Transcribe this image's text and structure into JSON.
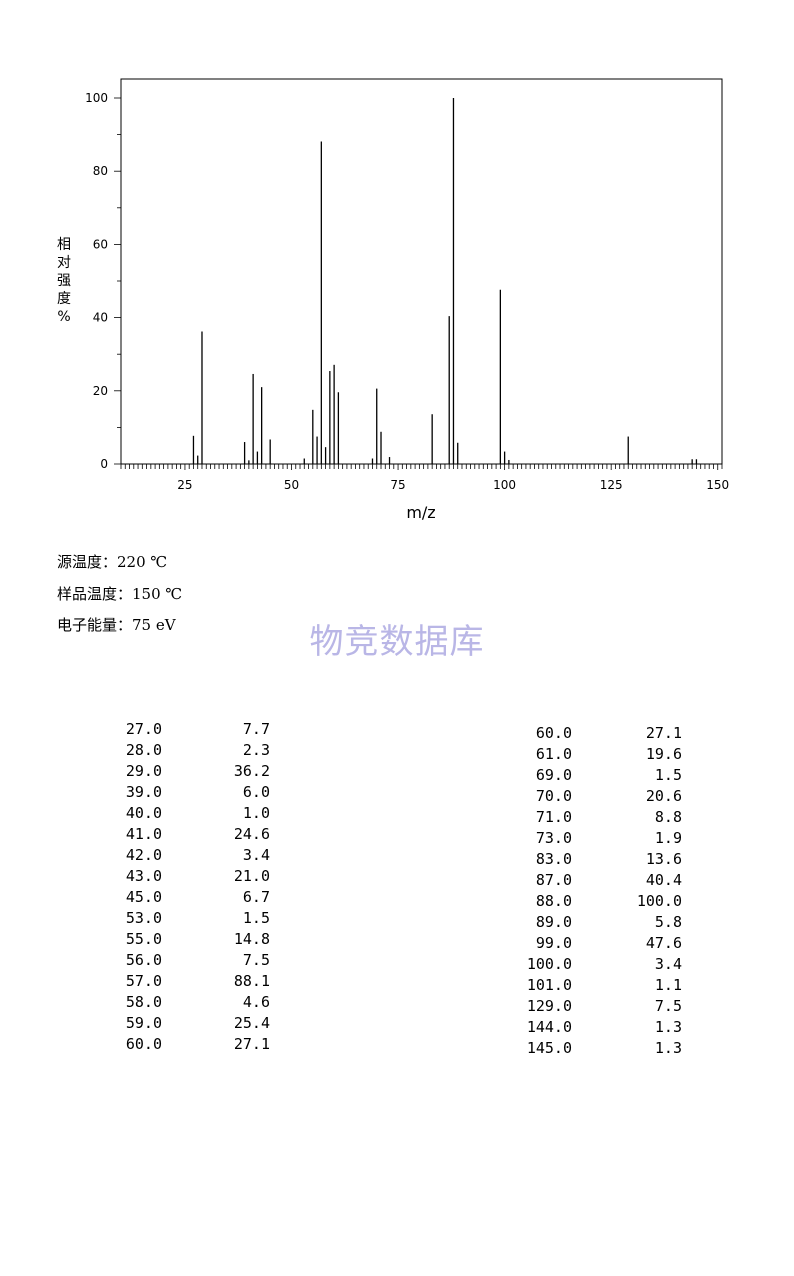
{
  "chart_data": {
    "type": "bar",
    "xlabel": "m/z",
    "ylabel": "相对强度%",
    "xlim": [
      10,
      151
    ],
    "ylim": [
      0,
      100
    ],
    "xticks": [
      25,
      50,
      75,
      100,
      125,
      150
    ],
    "yticks": [
      0,
      20,
      40,
      60,
      80,
      100
    ],
    "grid": false,
    "peaks": [
      {
        "mz": 27.0,
        "intensity": 7.7
      },
      {
        "mz": 28.0,
        "intensity": 2.3
      },
      {
        "mz": 29.0,
        "intensity": 36.2
      },
      {
        "mz": 39.0,
        "intensity": 6.0
      },
      {
        "mz": 40.0,
        "intensity": 1.0
      },
      {
        "mz": 41.0,
        "intensity": 24.6
      },
      {
        "mz": 42.0,
        "intensity": 3.4
      },
      {
        "mz": 43.0,
        "intensity": 21.0
      },
      {
        "mz": 45.0,
        "intensity": 6.7
      },
      {
        "mz": 53.0,
        "intensity": 1.5
      },
      {
        "mz": 55.0,
        "intensity": 14.8
      },
      {
        "mz": 56.0,
        "intensity": 7.5
      },
      {
        "mz": 57.0,
        "intensity": 88.1
      },
      {
        "mz": 58.0,
        "intensity": 4.6
      },
      {
        "mz": 59.0,
        "intensity": 25.4
      },
      {
        "mz": 60.0,
        "intensity": 27.1
      },
      {
        "mz": 61.0,
        "intensity": 19.6
      },
      {
        "mz": 69.0,
        "intensity": 1.5
      },
      {
        "mz": 70.0,
        "intensity": 20.6
      },
      {
        "mz": 71.0,
        "intensity": 8.8
      },
      {
        "mz": 73.0,
        "intensity": 1.9
      },
      {
        "mz": 83.0,
        "intensity": 13.6
      },
      {
        "mz": 87.0,
        "intensity": 40.4
      },
      {
        "mz": 88.0,
        "intensity": 100.0
      },
      {
        "mz": 89.0,
        "intensity": 5.8
      },
      {
        "mz": 99.0,
        "intensity": 47.6
      },
      {
        "mz": 100.0,
        "intensity": 3.4
      },
      {
        "mz": 101.0,
        "intensity": 1.1
      },
      {
        "mz": 129.0,
        "intensity": 7.5
      },
      {
        "mz": 144.0,
        "intensity": 1.3
      },
      {
        "mz": 145.0,
        "intensity": 1.3
      }
    ]
  },
  "conditions": {
    "source_temp": "源温度：220 ℃",
    "sample_temp": "样品温度：150 ℃",
    "electron_energy": "电子能量：75 eV"
  },
  "watermark": "物竞数据库",
  "table_left": [
    {
      "mz": "27.0",
      "intensity": "7.7"
    },
    {
      "mz": "28.0",
      "intensity": "2.3"
    },
    {
      "mz": "29.0",
      "intensity": "36.2"
    },
    {
      "mz": "39.0",
      "intensity": "6.0"
    },
    {
      "mz": "40.0",
      "intensity": "1.0"
    },
    {
      "mz": "41.0",
      "intensity": "24.6"
    },
    {
      "mz": "42.0",
      "intensity": "3.4"
    },
    {
      "mz": "43.0",
      "intensity": "21.0"
    },
    {
      "mz": "45.0",
      "intensity": "6.7"
    },
    {
      "mz": "53.0",
      "intensity": "1.5"
    },
    {
      "mz": "55.0",
      "intensity": "14.8"
    },
    {
      "mz": "56.0",
      "intensity": "7.5"
    },
    {
      "mz": "57.0",
      "intensity": "88.1"
    },
    {
      "mz": "58.0",
      "intensity": "4.6"
    },
    {
      "mz": "59.0",
      "intensity": "25.4"
    },
    {
      "mz": "60.0",
      "intensity": "27.1"
    }
  ],
  "table_right": [
    {
      "mz": "60.0",
      "intensity": "27.1"
    },
    {
      "mz": "61.0",
      "intensity": "19.6"
    },
    {
      "mz": "69.0",
      "intensity": "1.5"
    },
    {
      "mz": "70.0",
      "intensity": "20.6"
    },
    {
      "mz": "71.0",
      "intensity": "8.8"
    },
    {
      "mz": "73.0",
      "intensity": "1.9"
    },
    {
      "mz": "83.0",
      "intensity": "13.6"
    },
    {
      "mz": "87.0",
      "intensity": "40.4"
    },
    {
      "mz": "88.0",
      "intensity": "100.0"
    },
    {
      "mz": "89.0",
      "intensity": "5.8"
    },
    {
      "mz": "99.0",
      "intensity": "47.6"
    },
    {
      "mz": "100.0",
      "intensity": "3.4"
    },
    {
      "mz": "101.0",
      "intensity": "1.1"
    },
    {
      "mz": "129.0",
      "intensity": "7.5"
    },
    {
      "mz": "144.0",
      "intensity": "1.3"
    },
    {
      "mz": "145.0",
      "intensity": "1.3"
    }
  ]
}
